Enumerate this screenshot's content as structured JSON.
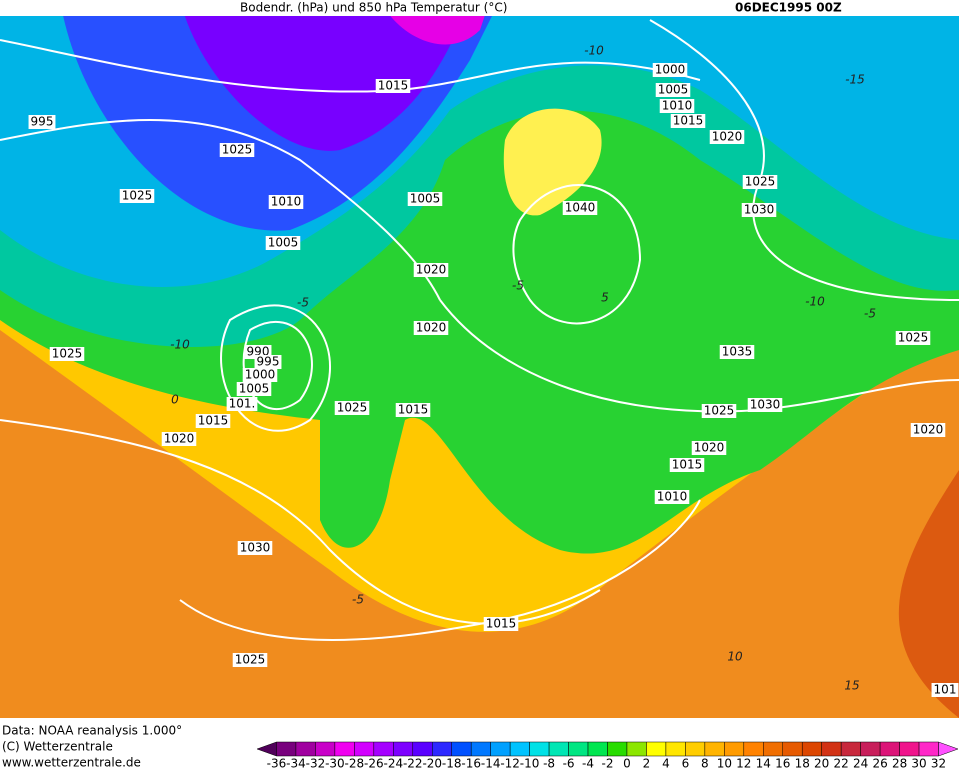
{
  "title": "Bodendr. (hPa)  und 850 hPa Temperatur (°C)",
  "date": "06DEC1995 00Z",
  "footer": [
    "Data: NOAA reanalysis 1.000°",
    "(C) Wetterzentrale",
    "www.wetterzentrale.de"
  ],
  "isobar_labels": [
    995,
    1015,
    1025,
    1025,
    1010,
    1005,
    1005,
    1020,
    1020,
    1025,
    990,
    995,
    1000,
    1005,
    "101.",
    1015,
    1020,
    1025,
    1015,
    1030,
    1025,
    1015,
    1000,
    1005,
    1010,
    1015,
    1020,
    1025,
    1030,
    1040,
    1035,
    1025,
    1030,
    1020,
    1015,
    1010,
    1025,
    1020,
    101
  ],
  "temperature_labels": [
    -10,
    -15,
    -10,
    0,
    -5,
    -5,
    5,
    -10,
    -5,
    -5,
    10,
    15
  ],
  "colorbar": {
    "ticks": [
      -36,
      -34,
      -32,
      -30,
      -28,
      -26,
      -24,
      -22,
      -20,
      -18,
      -16,
      -14,
      -12,
      -10,
      -8,
      -6,
      -4,
      -2,
      0,
      2,
      4,
      6,
      8,
      10,
      12,
      14,
      16,
      18,
      20,
      22,
      24,
      26,
      28,
      30,
      32
    ],
    "colors": [
      "#50005a",
      "#78007d",
      "#a000a0",
      "#c800c8",
      "#f000f0",
      "#d200ff",
      "#a500ff",
      "#7d00ff",
      "#5a00ff",
      "#2d28ff",
      "#0050ff",
      "#0078ff",
      "#00a0ff",
      "#00c3ff",
      "#00e1e6",
      "#00e6b4",
      "#00e682",
      "#00e650",
      "#28dc00",
      "#8ce600",
      "#ffff00",
      "#ffe600",
      "#ffcd00",
      "#ffb400",
      "#ff9b00",
      "#ff8200",
      "#f06e00",
      "#e65a00",
      "#dc4600",
      "#d23214",
      "#c8283c",
      "#c81e5a",
      "#dc1478",
      "#f0148c",
      "#ff28c8",
      "#ff50ff"
    ]
  }
}
